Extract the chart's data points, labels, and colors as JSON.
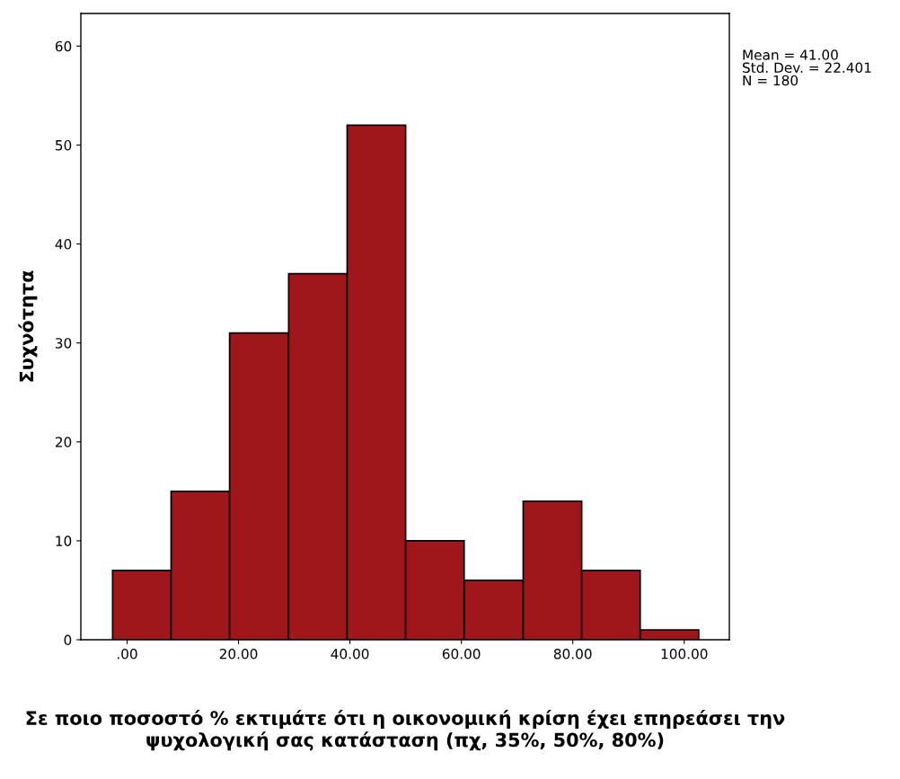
{
  "chart_data": {
    "type": "histogram",
    "xlabel": "Σε ποιο ποσοστό % εκτιμάτε ότι η οικονομική κρίση έχει επηρεάσει την ψυχολογική σας κατάσταση (πχ, 35%, 50%, 80%)",
    "ylabel": "Συχνότητα",
    "bins": [
      -2.6,
      7.9,
      18.4,
      29.0,
      39.5,
      50.0,
      60.5,
      71.1,
      81.6,
      92.1,
      102.6
    ],
    "values": [
      7,
      15,
      31,
      37,
      52,
      10,
      6,
      14,
      7,
      1
    ],
    "color": "#a0171b",
    "xlim": [
      -8.3,
      108.1
    ],
    "ylim": [
      0,
      63.3
    ],
    "xticks": [
      {
        "value": 0,
        "label": ".00"
      },
      {
        "value": 20,
        "label": "20.00"
      },
      {
        "value": 40,
        "label": "40.00"
      },
      {
        "value": 60,
        "label": "60.00"
      },
      {
        "value": 80,
        "label": "80.00"
      },
      {
        "value": 100,
        "label": "100.00"
      }
    ],
    "yticks": [
      0,
      10,
      20,
      30,
      40,
      50,
      60
    ],
    "annotations": [
      "Mean = 41.00\nStd. Dev. = 22.401\nN = 180"
    ]
  }
}
